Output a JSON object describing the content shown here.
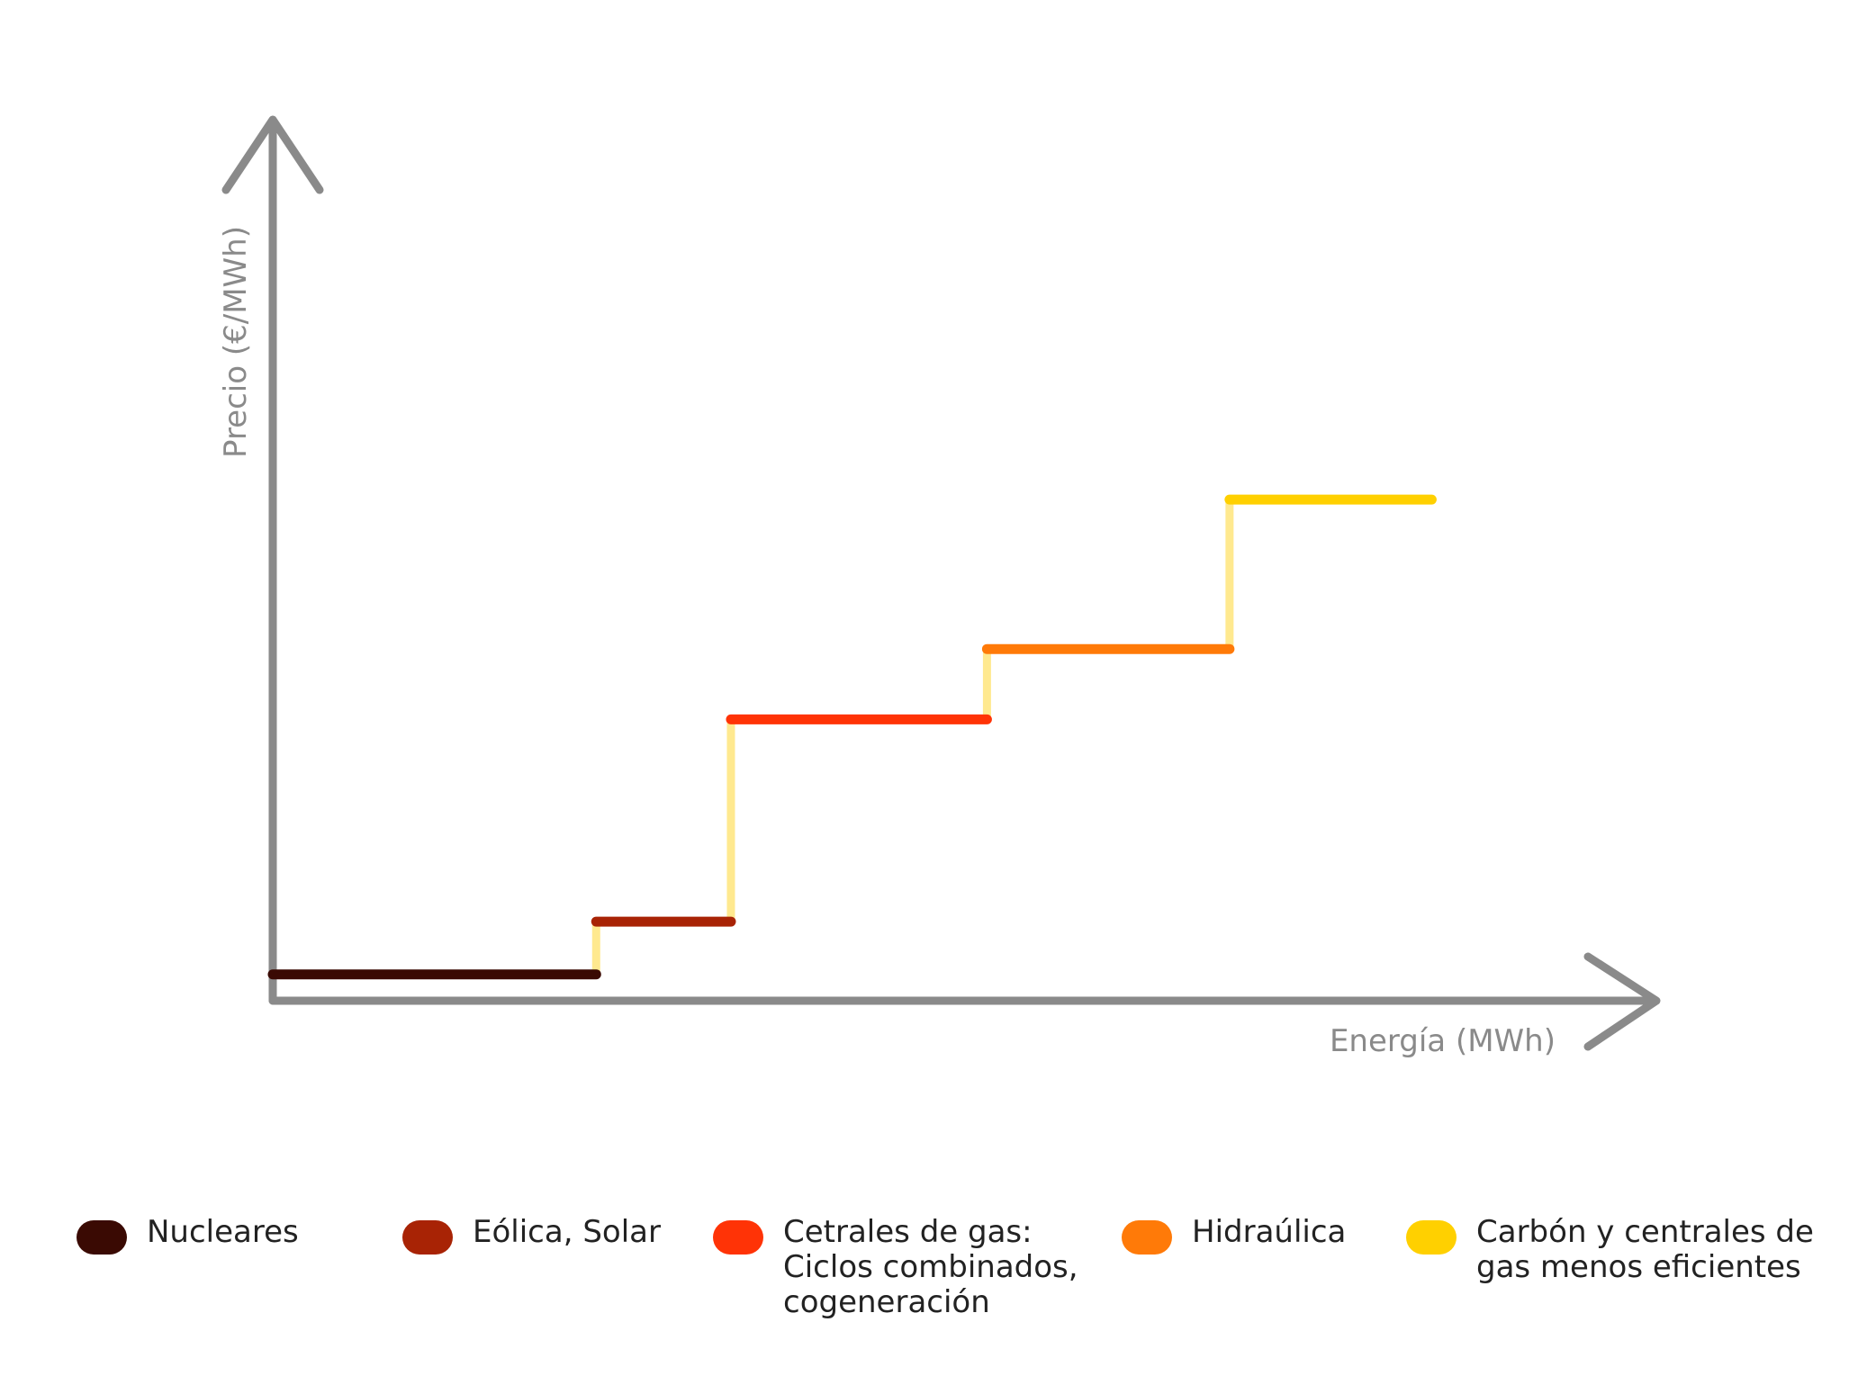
{
  "chart_data": {
    "type": "line",
    "xlabel": "Energía (MWh)",
    "ylabel": "Precio (€/MWh)",
    "xlim": [
      0,
      100
    ],
    "ylim": [
      0,
      100
    ],
    "axis_color": "#8a8a8a",
    "connector_color": "#ffe98f",
    "series": [
      {
        "name": "Nucleares",
        "color": "#3a0a03",
        "x": [
          0,
          24
        ],
        "y": [
          3,
          3
        ]
      },
      {
        "name": "Eólica, Solar",
        "color": "#a82305",
        "x": [
          24,
          34
        ],
        "y": [
          9,
          9
        ]
      },
      {
        "name": "Cetrales de gas:\nCiclos combinados,\ncogeneración",
        "color": "#ff3306",
        "x": [
          34,
          53
        ],
        "y": [
          32,
          32
        ]
      },
      {
        "name": "Hidraúlica",
        "color": "#ff7a08",
        "x": [
          53,
          71
        ],
        "y": [
          40,
          40
        ]
      },
      {
        "name": "Carbón y centrales de\ngas menos eficientes",
        "color": "#ffd000",
        "x": [
          71,
          86
        ],
        "y": [
          57,
          57
        ]
      }
    ]
  }
}
